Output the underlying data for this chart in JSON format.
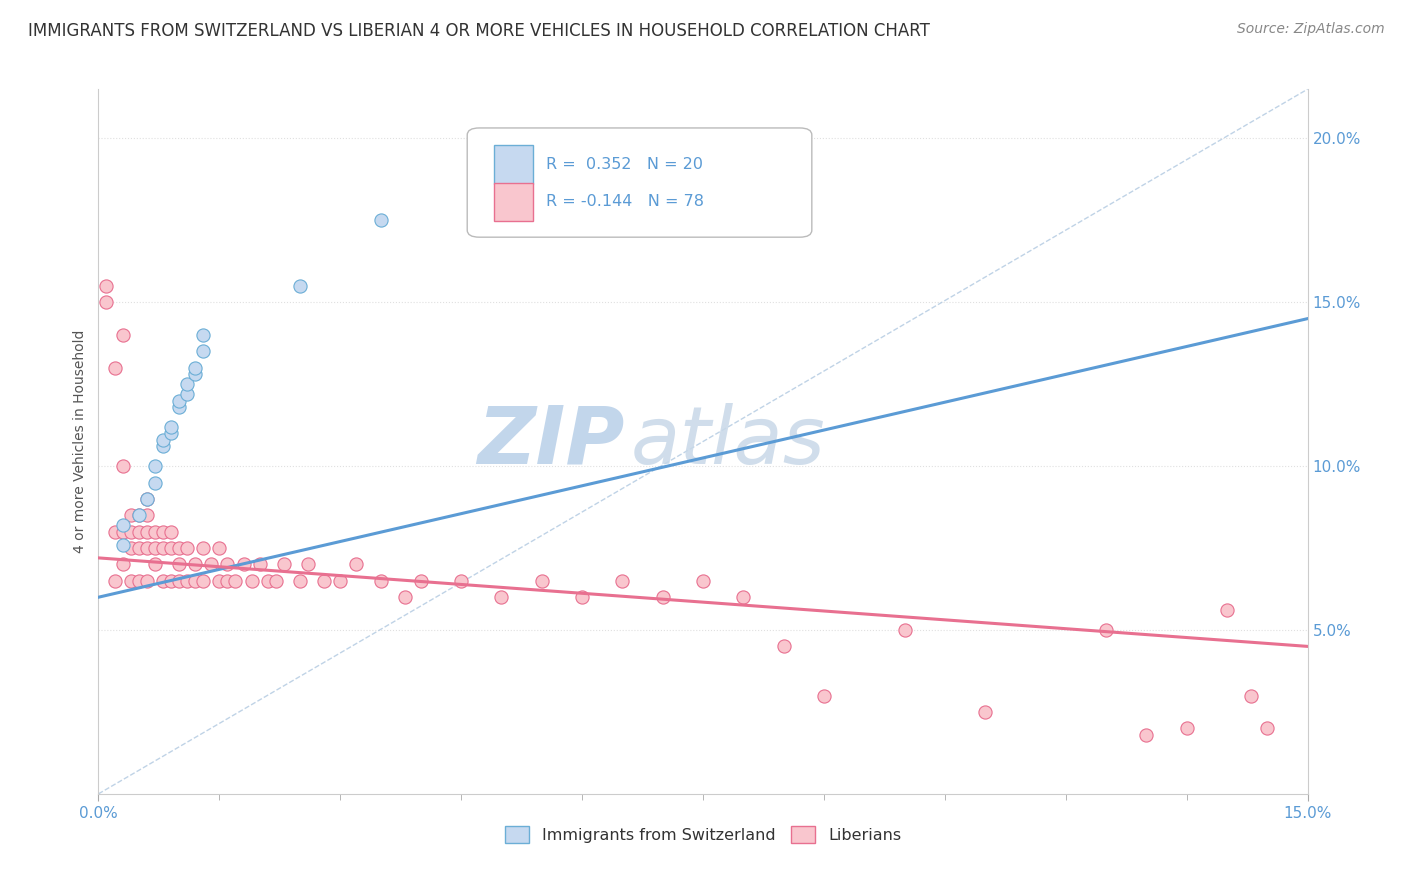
{
  "title": "IMMIGRANTS FROM SWITZERLAND VS LIBERIAN 4 OR MORE VEHICLES IN HOUSEHOLD CORRELATION CHART",
  "source": "Source: ZipAtlas.com",
  "ylabel": "4 or more Vehicles in Household",
  "xlim": [
    0.0,
    0.15
  ],
  "ylim": [
    0.0,
    0.215
  ],
  "xtick_positions": [
    0.0,
    0.15
  ],
  "xtick_labels": [
    "0.0%",
    "15.0%"
  ],
  "yticks_right": [
    0.05,
    0.1,
    0.15,
    0.2
  ],
  "ytick_labels_right": [
    "5.0%",
    "10.0%",
    "15.0%",
    "20.0%"
  ],
  "title_fontsize": 12,
  "source_fontsize": 10,
  "axis_label_fontsize": 10,
  "tick_fontsize": 11,
  "blue_fill_color": "#c6d9f0",
  "blue_edge_color": "#6baed6",
  "pink_fill_color": "#f9c6ce",
  "pink_edge_color": "#e87090",
  "blue_line_color": "#5b9bd5",
  "pink_line_color": "#e87090",
  "diag_line_color": "#b0c8e0",
  "watermark_color": "#d0e0f0",
  "grid_color": "#e0e0e0",
  "swiss_x": [
    0.003,
    0.003,
    0.005,
    0.006,
    0.007,
    0.007,
    0.008,
    0.008,
    0.009,
    0.009,
    0.01,
    0.01,
    0.011,
    0.011,
    0.012,
    0.012,
    0.013,
    0.013,
    0.025,
    0.035
  ],
  "swiss_y": [
    0.076,
    0.082,
    0.085,
    0.09,
    0.095,
    0.1,
    0.106,
    0.108,
    0.11,
    0.112,
    0.118,
    0.12,
    0.122,
    0.125,
    0.128,
    0.13,
    0.135,
    0.14,
    0.155,
    0.175
  ],
  "liberian_x": [
    0.001,
    0.001,
    0.002,
    0.002,
    0.002,
    0.003,
    0.003,
    0.003,
    0.003,
    0.004,
    0.004,
    0.004,
    0.004,
    0.005,
    0.005,
    0.005,
    0.005,
    0.006,
    0.006,
    0.006,
    0.006,
    0.006,
    0.007,
    0.007,
    0.007,
    0.008,
    0.008,
    0.008,
    0.009,
    0.009,
    0.009,
    0.01,
    0.01,
    0.01,
    0.011,
    0.011,
    0.012,
    0.012,
    0.013,
    0.013,
    0.014,
    0.015,
    0.015,
    0.016,
    0.016,
    0.017,
    0.018,
    0.019,
    0.02,
    0.021,
    0.022,
    0.023,
    0.025,
    0.026,
    0.028,
    0.03,
    0.032,
    0.035,
    0.038,
    0.04,
    0.045,
    0.05,
    0.055,
    0.06,
    0.065,
    0.07,
    0.075,
    0.08,
    0.085,
    0.09,
    0.1,
    0.11,
    0.125,
    0.13,
    0.135,
    0.14,
    0.143,
    0.145
  ],
  "liberian_y": [
    0.155,
    0.15,
    0.13,
    0.08,
    0.065,
    0.14,
    0.1,
    0.08,
    0.07,
    0.085,
    0.08,
    0.075,
    0.065,
    0.085,
    0.08,
    0.075,
    0.065,
    0.09,
    0.085,
    0.08,
    0.075,
    0.065,
    0.08,
    0.075,
    0.07,
    0.08,
    0.075,
    0.065,
    0.08,
    0.075,
    0.065,
    0.075,
    0.07,
    0.065,
    0.075,
    0.065,
    0.07,
    0.065,
    0.075,
    0.065,
    0.07,
    0.075,
    0.065,
    0.07,
    0.065,
    0.065,
    0.07,
    0.065,
    0.07,
    0.065,
    0.065,
    0.07,
    0.065,
    0.07,
    0.065,
    0.065,
    0.07,
    0.065,
    0.06,
    0.065,
    0.065,
    0.06,
    0.065,
    0.06,
    0.065,
    0.06,
    0.065,
    0.06,
    0.045,
    0.03,
    0.05,
    0.025,
    0.05,
    0.018,
    0.02,
    0.056,
    0.03,
    0.02
  ],
  "blue_trend_x": [
    0.0,
    0.15
  ],
  "blue_trend_y": [
    0.06,
    0.145
  ],
  "pink_trend_x": [
    0.0,
    0.15
  ],
  "pink_trend_y": [
    0.072,
    0.045
  ]
}
